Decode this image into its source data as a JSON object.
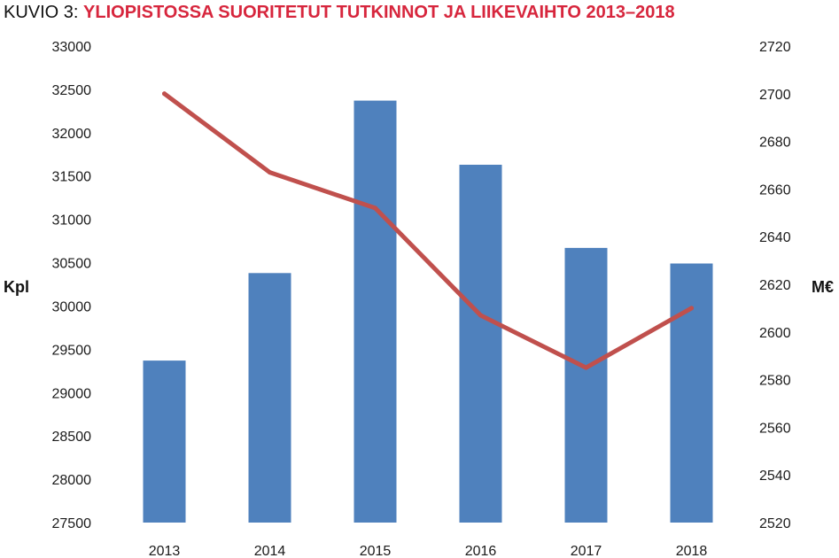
{
  "title": {
    "prefix": "KUVIO 3: ",
    "main": "YLIOPISTOSSA SUORITETUT TUTKINNOT JA LIIKEVAIHTO 2013–2018"
  },
  "chart_data": {
    "type": "bar",
    "categories": [
      "2013",
      "2014",
      "2015",
      "2016",
      "2017",
      "2018"
    ],
    "series": [
      {
        "type": "bar",
        "axis": "left",
        "color": "#4f81bd",
        "values": [
          29370,
          30380,
          32370,
          31630,
          30670,
          30490
        ]
      },
      {
        "type": "line",
        "axis": "right",
        "color": "#c0504d",
        "values": [
          2700,
          2667,
          2652,
          2607,
          2585,
          2610
        ]
      }
    ],
    "ylabel_left": "Kpl",
    "ylabel_right": "M€",
    "ylim_left": [
      27500,
      33000
    ],
    "ylim_right": [
      2520,
      2720
    ],
    "yticks_left": [
      "33000",
      "32500",
      "32000",
      "31500",
      "31000",
      "30500",
      "30000",
      "29500",
      "29000",
      "28500",
      "28000",
      "27500"
    ],
    "yticks_right": [
      "2720",
      "2700",
      "2680",
      "2660",
      "2640",
      "2620",
      "2600",
      "2580",
      "2560",
      "2540",
      "2520"
    ],
    "grid": false,
    "legend": "none"
  }
}
